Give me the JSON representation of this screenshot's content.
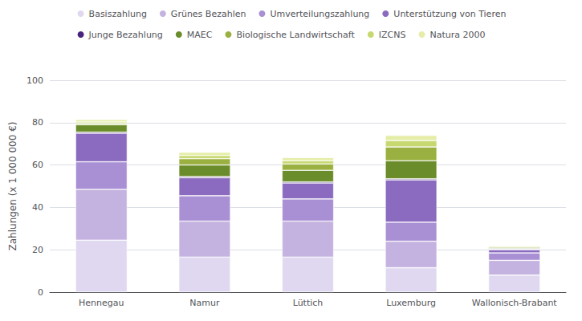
{
  "chart_data": {
    "type": "bar",
    "stacked": true,
    "categories": [
      "Hennegau",
      "Namur",
      "Lüttich",
      "Luxemburg",
      "Wallonisch-Brabant"
    ],
    "series": [
      {
        "name": "Basiszahlung",
        "color": "#e0d8f0",
        "values": [
          24.5,
          16.5,
          16.5,
          11.5,
          8.0
        ]
      },
      {
        "name": "Grünes Bezahlen",
        "color": "#c4b3e0",
        "values": [
          24.0,
          17.0,
          17.0,
          12.5,
          7.0
        ]
      },
      {
        "name": "Umverteilungszahlung",
        "color": "#a98fd4",
        "values": [
          13.0,
          12.0,
          10.5,
          9.0,
          3.5
        ]
      },
      {
        "name": "Unterstützung von Tieren",
        "color": "#8b6bbf",
        "values": [
          13.5,
          8.5,
          7.5,
          20.0,
          1.5
        ]
      },
      {
        "name": "Junge Bezahlung",
        "color": "#4a2580",
        "values": [
          0.5,
          0.5,
          0.5,
          0.5,
          0.3
        ]
      },
      {
        "name": "MAEC",
        "color": "#6b8c2a",
        "values": [
          3.5,
          5.5,
          5.5,
          8.5,
          0.5
        ]
      },
      {
        "name": "Biologische Landwirtschaft",
        "color": "#9ab040",
        "values": [
          0.5,
          3.0,
          3.0,
          6.5,
          0.5
        ]
      },
      {
        "name": "IZCNS",
        "color": "#c8d870",
        "values": [
          0.8,
          1.5,
          1.5,
          3.0,
          0.5
        ]
      },
      {
        "name": "Natura 2000",
        "color": "#e5eda8",
        "values": [
          1.2,
          1.5,
          1.5,
          2.5,
          0.2
        ]
      }
    ],
    "ylabel": "Zahlungen (x 1 000 000 €)",
    "ylim": [
      0,
      100
    ],
    "yticks": [
      0,
      20,
      40,
      60,
      80,
      100
    ],
    "grid": true,
    "legend": "top"
  }
}
